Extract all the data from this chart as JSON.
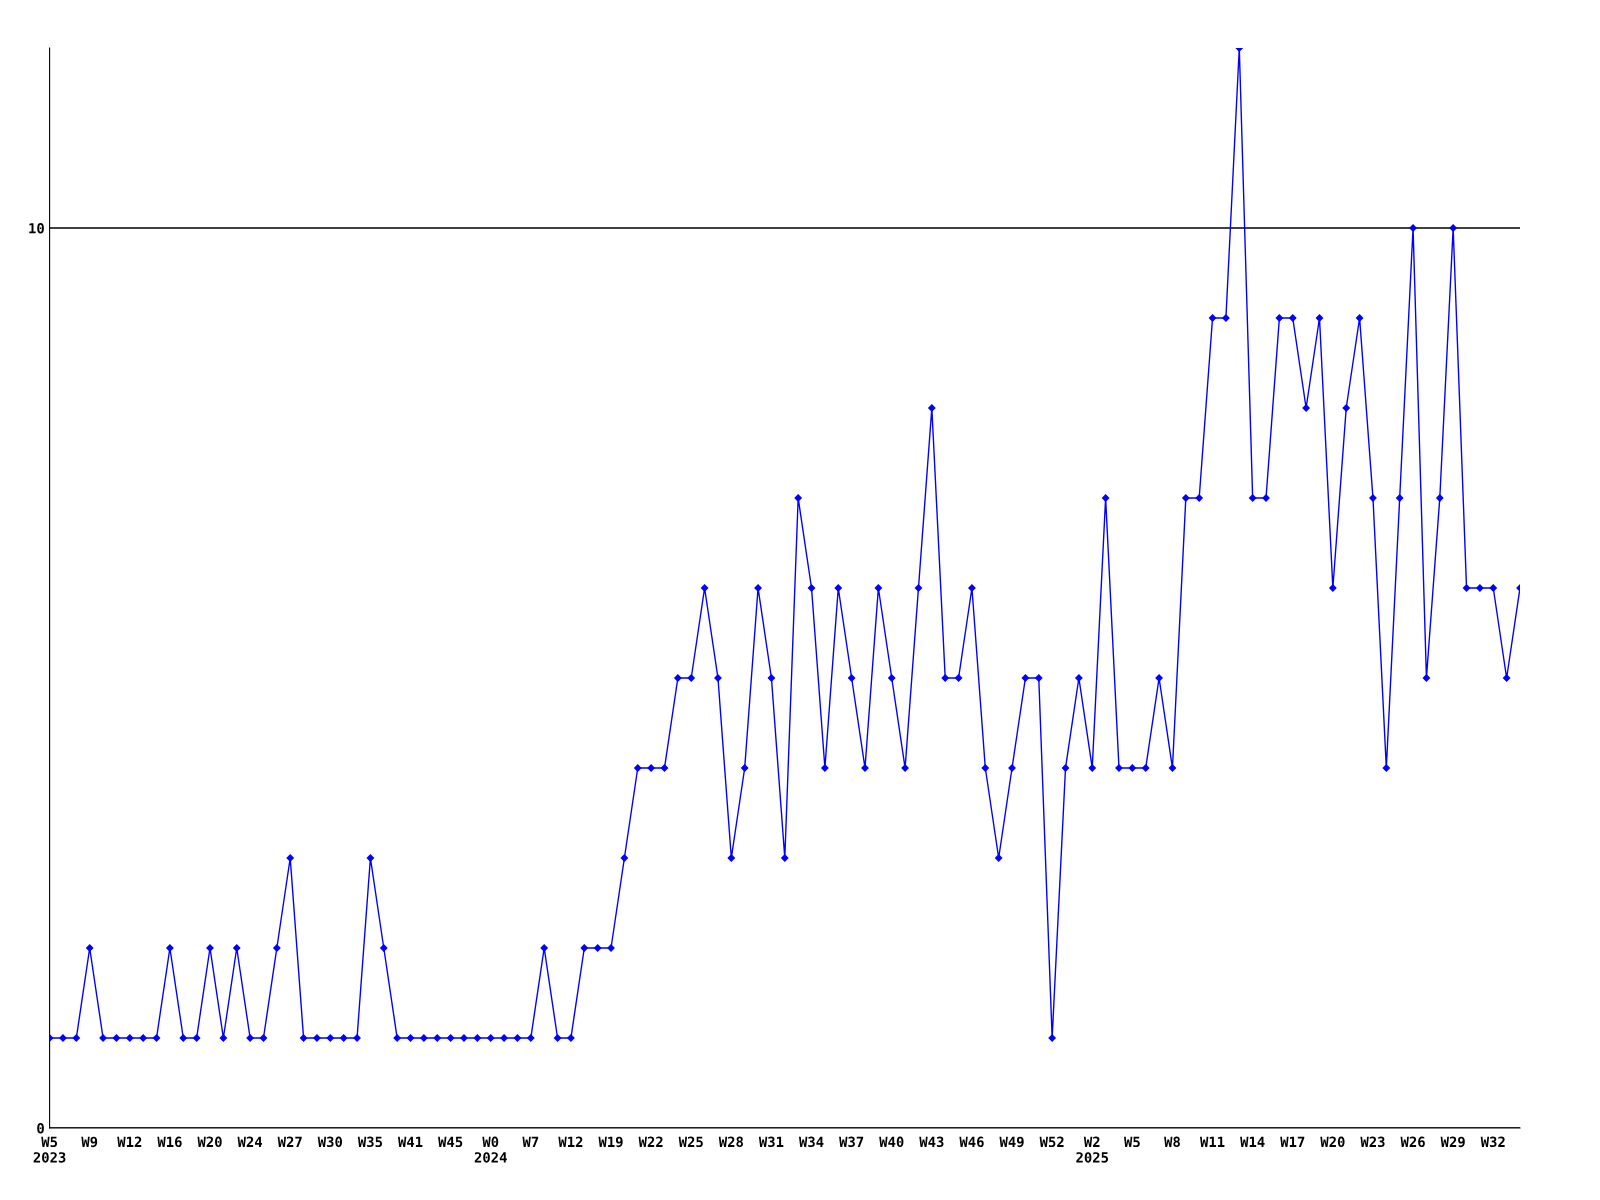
{
  "chart_data": {
    "type": "line",
    "categories": [
      "W5\n2023",
      null,
      null,
      "W9",
      null,
      null,
      "W12",
      null,
      null,
      "W16",
      null,
      null,
      "W20",
      null,
      null,
      "W24",
      null,
      null,
      "W27",
      null,
      null,
      "W30",
      null,
      null,
      "W35",
      null,
      null,
      "W41",
      null,
      null,
      "W45",
      null,
      null,
      "W0\n2024",
      null,
      null,
      "W7",
      null,
      null,
      "W12",
      null,
      null,
      "W19",
      null,
      null,
      "W22",
      null,
      null,
      "W25",
      null,
      null,
      "W28",
      null,
      null,
      "W31",
      null,
      null,
      "W34",
      null,
      null,
      "W37",
      null,
      null,
      "W40",
      null,
      null,
      "W43",
      null,
      null,
      "W46",
      null,
      null,
      "W49",
      null,
      null,
      "W52",
      null,
      null,
      "W2\n2025",
      null,
      null,
      "W5",
      null,
      null,
      "W8",
      null,
      null,
      "W11",
      null,
      null,
      "W14",
      null,
      null,
      "W17",
      null,
      null,
      "W20",
      null,
      null,
      "W23",
      null,
      null,
      "W26",
      null,
      null,
      "W29",
      null,
      null,
      "W32",
      null,
      null
    ],
    "series": [
      {
        "color": "#0000ff",
        "values": [
          1,
          1,
          1,
          2,
          1,
          1,
          1,
          1,
          1,
          2,
          1,
          1,
          2,
          1,
          2,
          1,
          1,
          2,
          3,
          1,
          1,
          1,
          1,
          1,
          3,
          2,
          1,
          1,
          1,
          1,
          1,
          1,
          1,
          1,
          1,
          1,
          1,
          2,
          1,
          1,
          2,
          2,
          2,
          3,
          4,
          4,
          4,
          5,
          5,
          6,
          5,
          3,
          4,
          6,
          5,
          3,
          7,
          6,
          4,
          6,
          5,
          4,
          6,
          5,
          4,
          6,
          8,
          5,
          5,
          6,
          4,
          3,
          4,
          5,
          5,
          1,
          4,
          5,
          4,
          7,
          4,
          4,
          4,
          5,
          4,
          7,
          7,
          9,
          9,
          12,
          7,
          7,
          9,
          9,
          8,
          9,
          6,
          8,
          9,
          7,
          4,
          7,
          10,
          5,
          7,
          10,
          6,
          6,
          6,
          5,
          6
        ]
      }
    ],
    "ylim": [
      0,
      12
    ],
    "yticks": [
      0,
      10
    ],
    "grid": "y",
    "marker": "diamond",
    "line_style": "solid"
  }
}
